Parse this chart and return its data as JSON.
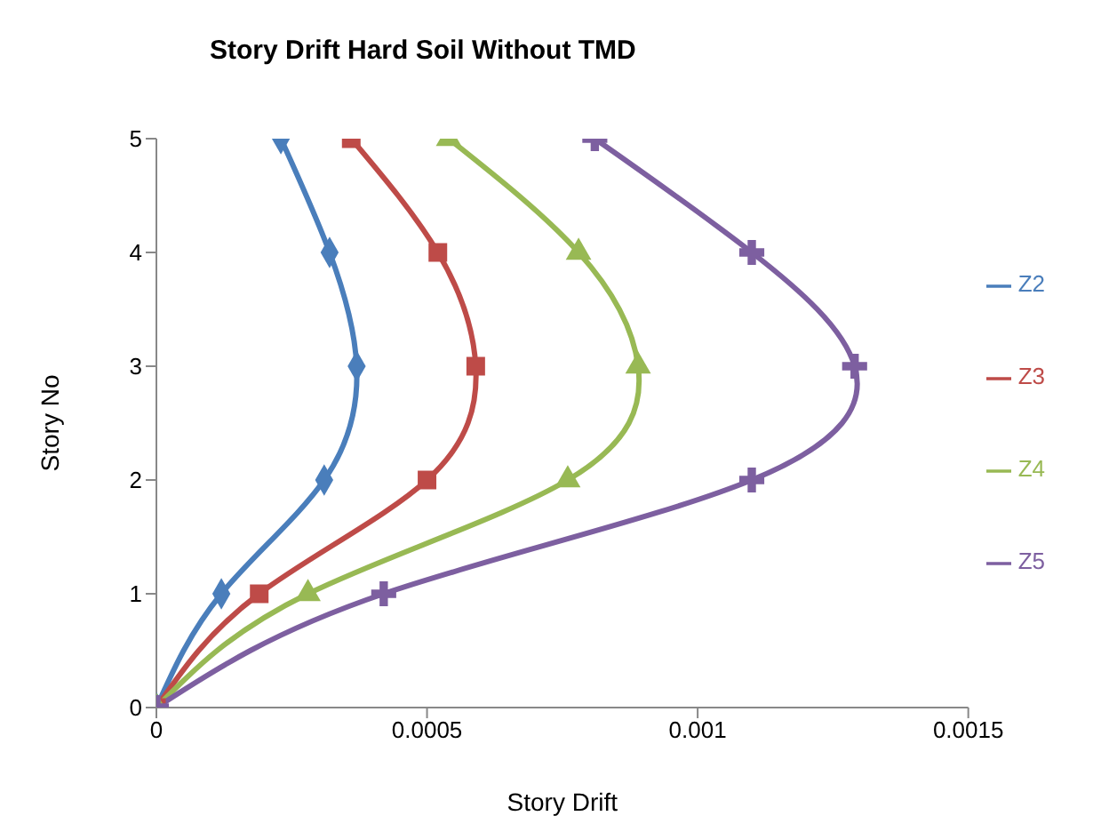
{
  "chart_data": {
    "type": "line",
    "title": "Story Drift Hard Soil Without TMD",
    "xlabel": "Story Drift",
    "ylabel": "Story No",
    "xlim": [
      0,
      0.0015
    ],
    "xticks": [
      0,
      0.0005,
      0.001,
      0.0015
    ],
    "ylim": [
      0,
      5
    ],
    "yticks": [
      0,
      1,
      2,
      3,
      4,
      5
    ],
    "legend": "right",
    "series": [
      {
        "name": "Z2",
        "color": "#4a7ebb",
        "marker": "diamond",
        "x": [
          0,
          0.00012,
          0.00031,
          0.00037,
          0.00032,
          0.00023
        ],
        "values": [
          0,
          1,
          2,
          3,
          4,
          5
        ]
      },
      {
        "name": "Z3",
        "color": "#be4b48",
        "marker": "square",
        "x": [
          0,
          0.00019,
          0.0005,
          0.00059,
          0.00052,
          0.00036
        ],
        "values": [
          0,
          1,
          2,
          3,
          4,
          5
        ]
      },
      {
        "name": "Z4",
        "color": "#98b954",
        "marker": "triangle",
        "x": [
          0,
          0.00028,
          0.00076,
          0.00089,
          0.00078,
          0.00054
        ],
        "values": [
          0,
          1,
          2,
          3,
          4,
          5
        ]
      },
      {
        "name": "Z5",
        "color": "#7d5fa0",
        "marker": "cross",
        "x": [
          0,
          0.00042,
          0.0011,
          0.00129,
          0.0011,
          0.00081
        ],
        "values": [
          0,
          1,
          2,
          3,
          4,
          5
        ]
      }
    ]
  }
}
